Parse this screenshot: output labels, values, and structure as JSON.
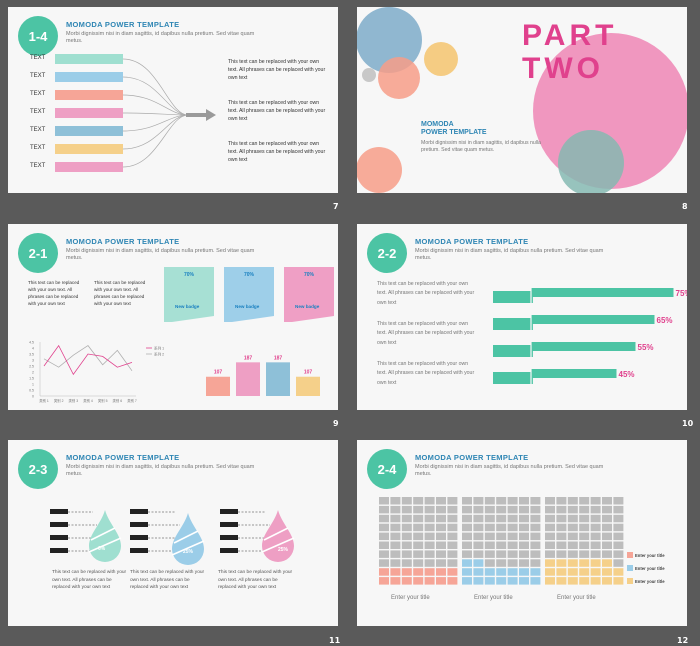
{
  "header": {
    "title": "MOMODA  POWER TEMPLATE",
    "subtitle": "Morbi dignissim  nisi in diam sagittis, id dapibus nulla pretium.  Sed vitae quam metus."
  },
  "slides": [
    {
      "page": "7",
      "badge": "1-4",
      "left_labels": [
        "TEXT",
        "TEXT",
        "TEXT",
        "TEXT",
        "TEXT",
        "TEXT",
        "TEXT"
      ],
      "bar_colors": [
        "#9fdfd0",
        "#9bcde8",
        "#f6a597",
        "#ee9fc4",
        "#8ec0d8",
        "#f5d08a",
        "#ee9fc4"
      ],
      "right_texts": [
        "This text can be replaced  with your own text. All phrases  can be replaced  with your own text",
        "This text can be replaced  with your own text. All phrases  can be replaced  with your own text",
        "This text can be replaced  with your own text. All phrases  can be replaced  with your own text"
      ]
    },
    {
      "page": "8",
      "heading_line1": "PART",
      "heading_line2": "TWO",
      "title": "MOMODA",
      "title2": "POWER TEMPLATE",
      "sub": "Morbi dignissim  nisi in diam sagittis, id dapibus nulla pretium.  Sed vitae quam metus."
    },
    {
      "page": "9",
      "badge": "2-1",
      "text1": "This text can be replaced with your own text. All phrases can be replaced with your own text",
      "text2": "This text can be replaced with your own text. All phrases can be replaced with your own text",
      "tags": [
        {
          "pct": "70%",
          "label": "New badge",
          "color": "#a7e0d4"
        },
        {
          "pct": "70%",
          "label": "New badge",
          "color": "#9ecfe9"
        },
        {
          "pct": "70%",
          "label": "New badge",
          "color": "#ef9fc5"
        }
      ],
      "bar_values": [
        {
          "label": "107",
          "value": 107,
          "color": "#f6a597"
        },
        {
          "label": "187",
          "value": 187,
          "color": "#ee9fc4"
        },
        {
          "label": "187",
          "value": 187,
          "color": "#8ec0d8"
        },
        {
          "label": "107",
          "value": 107,
          "color": "#f5d08a"
        }
      ],
      "line_chart": {
        "y_ticks": [
          "0",
          "0.5",
          "1",
          "1.5",
          "2",
          "2.5",
          "3",
          "3.5",
          "4",
          "4.5"
        ],
        "x_labels": [
          "类别 1",
          "类别 2",
          "类别 3",
          "类别 4",
          "类别 5",
          "类别 6",
          "类别 7"
        ],
        "legend": [
          "系列 1",
          "系列 2"
        ]
      }
    },
    {
      "page": "10",
      "badge": "2-2",
      "texts": [
        "This text can be replaced  with your own text. All phrases  can be replaced  with your own text",
        "This text can be replaced  with your own text. All phrases  can be replaced  with your own text",
        "This text can be replaced  with your own text. All phrases  can be replaced  with your own text"
      ],
      "bars": [
        {
          "label": "75%",
          "value": 75
        },
        {
          "label": "65%",
          "value": 65
        },
        {
          "label": "55%",
          "value": 55
        },
        {
          "label": "45%",
          "value": 45
        }
      ]
    },
    {
      "page": "11",
      "badge": "2-3",
      "drops": [
        {
          "pct": "6%",
          "color": "#9fdfd0",
          "text": "This text can be replaced with your own text. All phrases can be replaced with your own text"
        },
        {
          "pct": "25%",
          "color": "#9bcde8",
          "text": "This text can be replaced with your own text. All phrases can be replaced with your own text"
        },
        {
          "pct": "25%",
          "color": "#ee9fc4",
          "text": "This text can be replaced with your own text. All phrases can be replaced with your own text"
        }
      ]
    },
    {
      "page": "12",
      "badge": "2-4",
      "columns": [
        {
          "title": "Enter your title",
          "filled": 14,
          "color": "#f6a597"
        },
        {
          "title": "Enter your title",
          "filled": 16,
          "color": "#9bcde8"
        },
        {
          "title": "Enter your title",
          "filled": 20,
          "color": "#f5d08a"
        }
      ],
      "legend": [
        {
          "label": "Enter your title",
          "color": "#f6a597"
        },
        {
          "label": "Enter your title",
          "color": "#9bcde8"
        },
        {
          "label": "Enter your title",
          "color": "#f5d08a"
        }
      ]
    }
  ]
}
